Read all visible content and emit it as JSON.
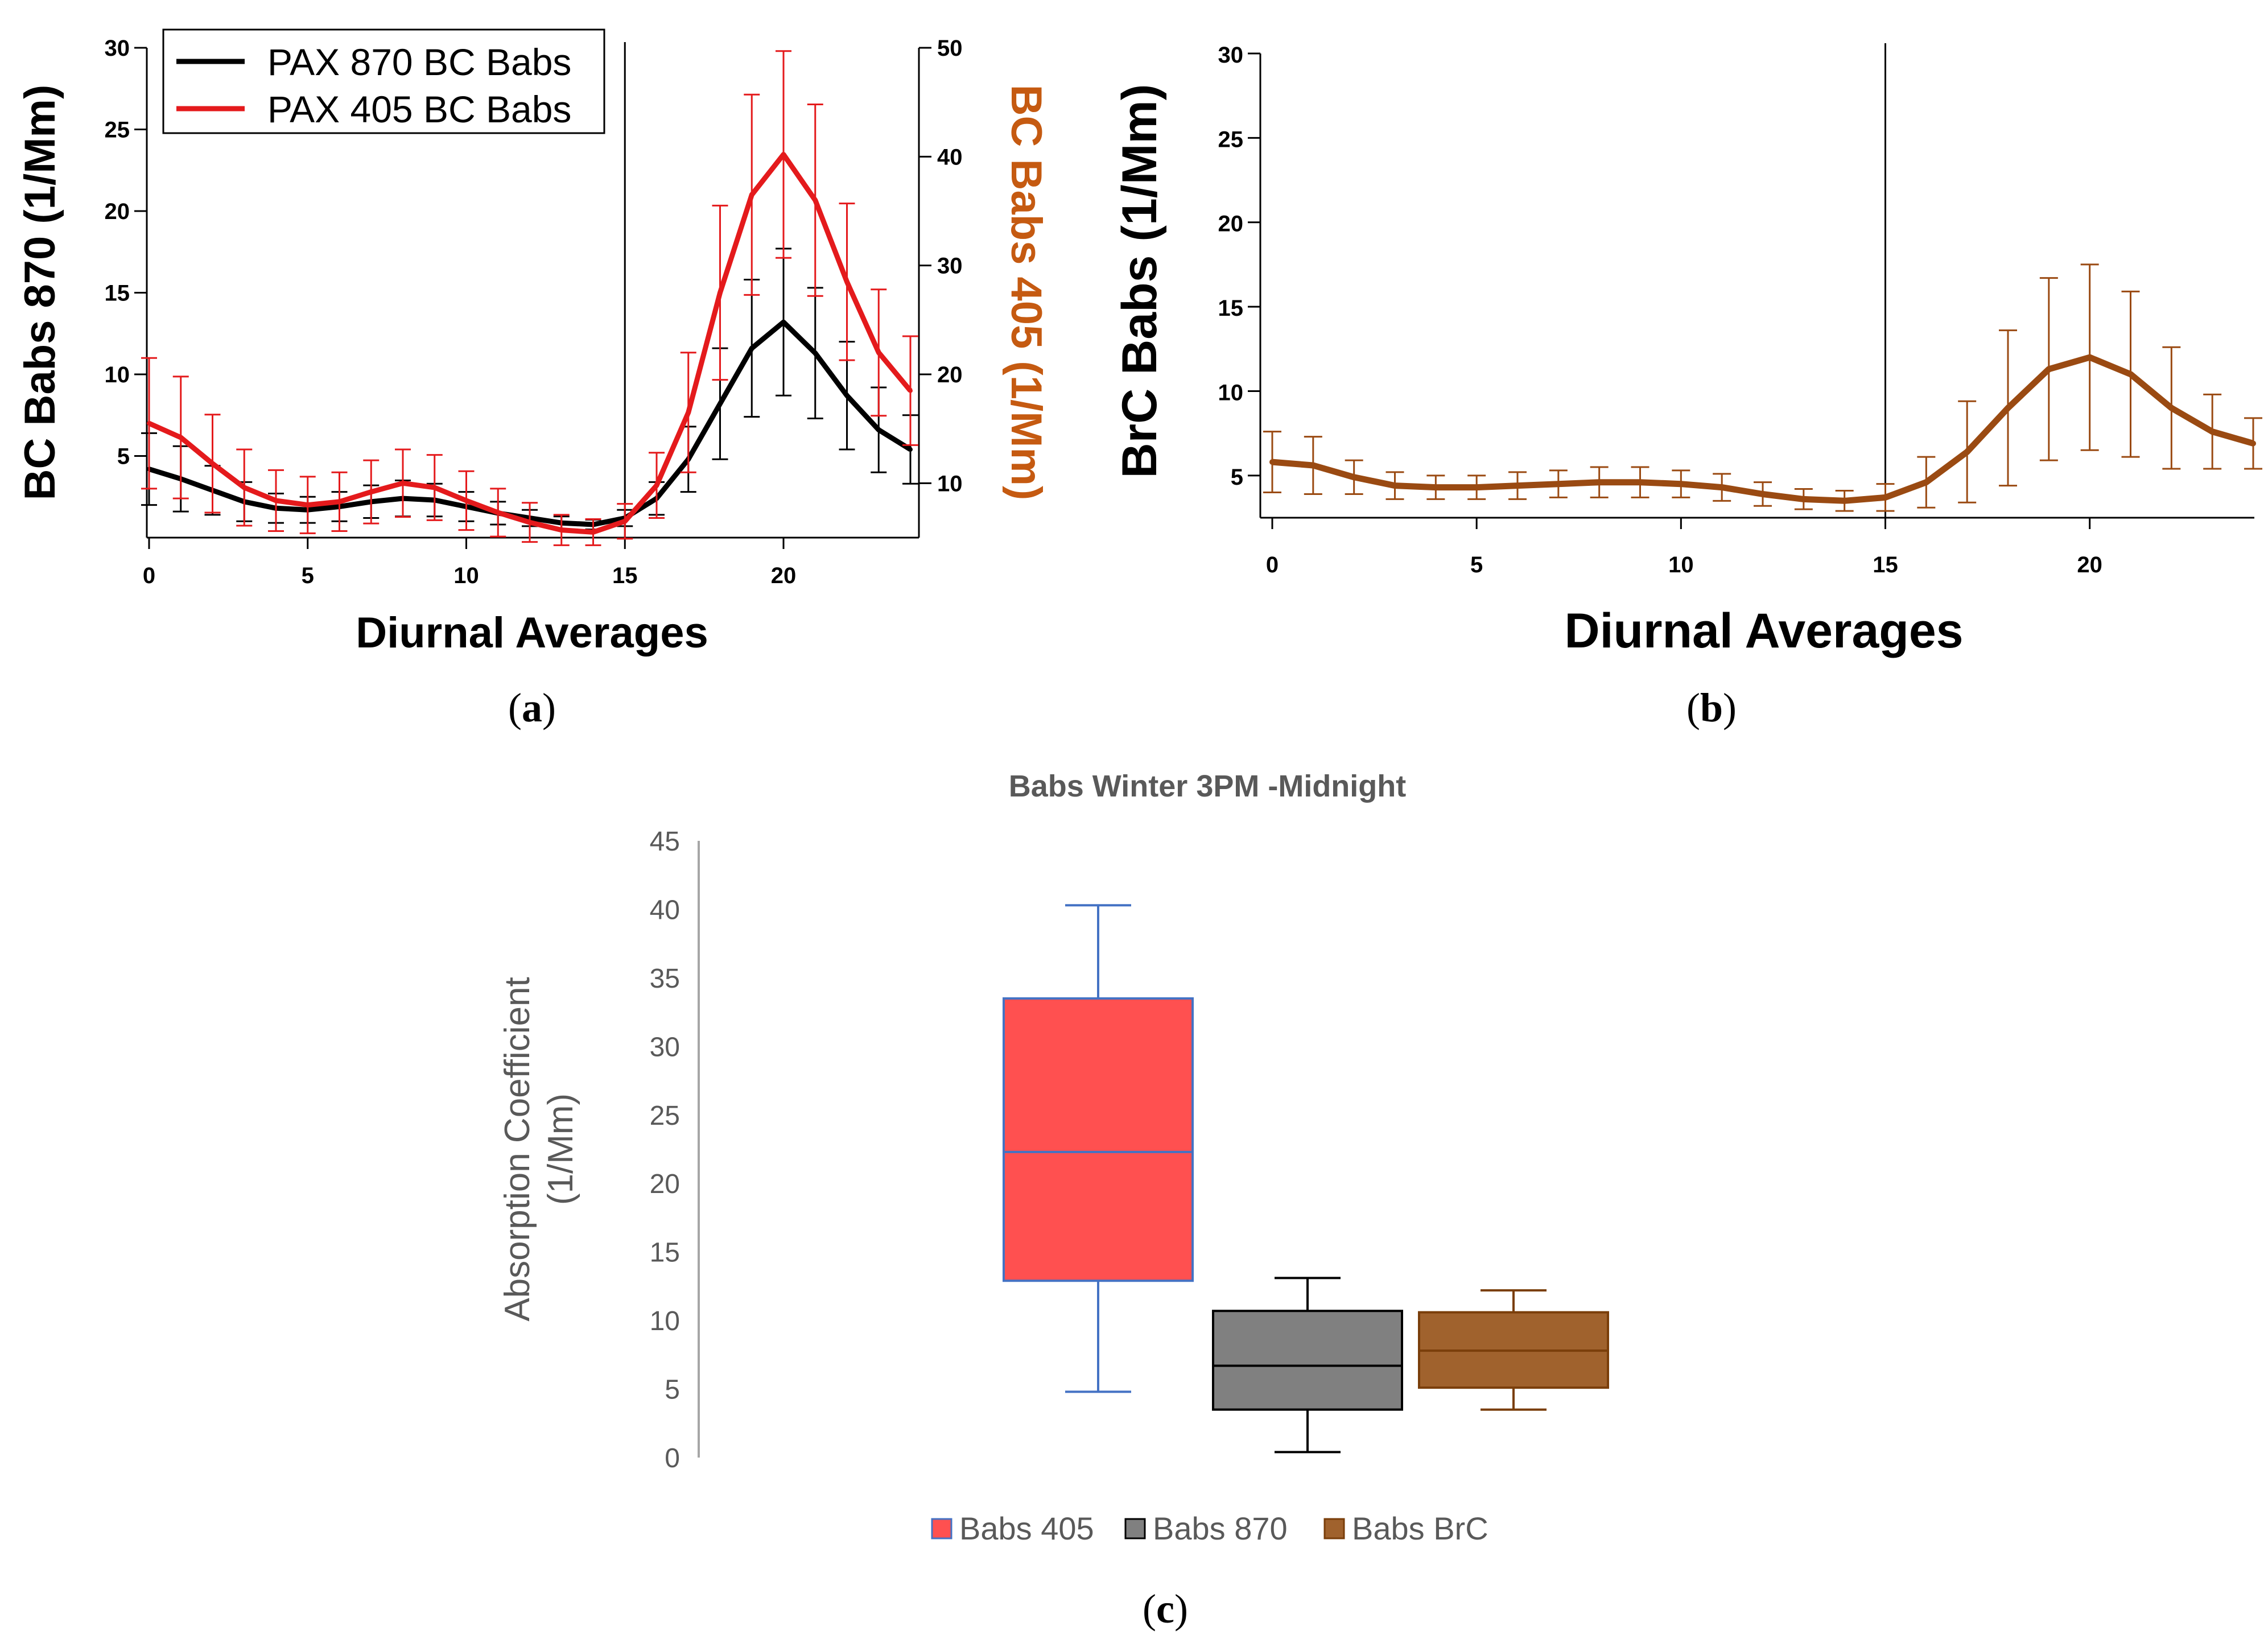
{
  "chart_data": [
    {
      "id": "a",
      "type": "line",
      "caption": "a",
      "xlabel": "Diurnal Averages",
      "ylabel": "BC Babs 870 (1/Mm)",
      "ylabel_right": "BC Babs 405 (1/Mm)",
      "xlim": [
        0,
        24
      ],
      "ylim_left": [
        0,
        30
      ],
      "ylim_right": [
        5,
        50
      ],
      "xticks": [
        0,
        5,
        10,
        15,
        20
      ],
      "yticks_left": [
        5,
        10,
        15,
        20,
        25,
        30
      ],
      "yticks_right": [
        10,
        20,
        30,
        40,
        50
      ],
      "vline_x": 15,
      "legend_position": "top-left",
      "series": [
        {
          "name": "PAX 870 BC Babs",
          "axis": "left",
          "color": "#000000",
          "x": [
            0,
            1,
            2,
            3,
            4,
            5,
            6,
            7,
            8,
            9,
            10,
            11,
            12,
            13,
            14,
            15,
            16,
            17,
            18,
            19,
            20,
            21,
            22,
            23,
            24
          ],
          "y": [
            4.2,
            3.6,
            2.9,
            2.2,
            1.8,
            1.7,
            1.9,
            2.2,
            2.4,
            2.3,
            1.9,
            1.5,
            1.2,
            0.9,
            0.8,
            1.2,
            2.4,
            4.8,
            8.2,
            11.6,
            13.2,
            11.3,
            8.7,
            6.6,
            5.4
          ],
          "err": [
            2.2,
            2.0,
            1.5,
            1.2,
            0.9,
            0.8,
            0.9,
            1.0,
            1.1,
            1.0,
            0.9,
            0.7,
            0.5,
            0.4,
            0.3,
            0.5,
            1.0,
            2.0,
            3.4,
            4.2,
            4.5,
            4.0,
            3.3,
            2.6,
            2.1
          ]
        },
        {
          "name": "PAX 405 BC Babs",
          "axis": "right",
          "color": "#E41A1C",
          "x": [
            0,
            1,
            2,
            3,
            4,
            5,
            6,
            7,
            8,
            9,
            10,
            11,
            12,
            13,
            14,
            15,
            16,
            17,
            18,
            19,
            20,
            21,
            22,
            23,
            24
          ],
          "y": [
            15.5,
            14.2,
            11.8,
            9.6,
            8.4,
            8.0,
            8.3,
            9.2,
            10.0,
            9.6,
            8.4,
            7.3,
            6.4,
            5.7,
            5.5,
            6.5,
            9.8,
            16.5,
            27.5,
            36.5,
            40.2,
            36.0,
            28.5,
            22.0,
            18.5
          ],
          "err": [
            6.0,
            5.6,
            4.5,
            3.5,
            2.8,
            2.6,
            2.7,
            2.9,
            3.1,
            3.0,
            2.7,
            2.2,
            1.8,
            1.4,
            1.2,
            1.6,
            3.0,
            5.5,
            8.0,
            9.2,
            9.5,
            8.8,
            7.2,
            5.8,
            5.0
          ]
        }
      ]
    },
    {
      "id": "b",
      "type": "line",
      "caption": "b",
      "xlabel": "Diurnal Averages",
      "ylabel": "BrC Babs (1/Mm)",
      "xlim": [
        0,
        24
      ],
      "ylim": [
        2.5,
        30
      ],
      "xticks": [
        0,
        5,
        10,
        15,
        20
      ],
      "yticks": [
        5,
        10,
        15,
        20,
        25,
        30
      ],
      "vline_x": 15,
      "series": [
        {
          "name": "BrC Babs",
          "color": "#9A4A12",
          "x": [
            0,
            1,
            2,
            3,
            4,
            5,
            6,
            7,
            8,
            9,
            10,
            11,
            12,
            13,
            14,
            15,
            16,
            17,
            18,
            19,
            20,
            21,
            22,
            23,
            24
          ],
          "y": [
            5.8,
            5.6,
            4.9,
            4.4,
            4.3,
            4.3,
            4.4,
            4.5,
            4.6,
            4.6,
            4.5,
            4.3,
            3.9,
            3.6,
            3.5,
            3.7,
            4.6,
            6.4,
            9.0,
            11.3,
            12.0,
            11.0,
            9.0,
            7.6,
            6.9
          ],
          "err": [
            1.8,
            1.7,
            1.0,
            0.8,
            0.7,
            0.7,
            0.8,
            0.8,
            0.9,
            0.9,
            0.8,
            0.8,
            0.7,
            0.6,
            0.6,
            0.8,
            1.5,
            3.0,
            4.6,
            5.4,
            5.5,
            4.9,
            3.6,
            2.2,
            1.5
          ]
        }
      ]
    },
    {
      "id": "c",
      "type": "box",
      "caption": "c",
      "title": "Babs Winter 3PM -Midnight",
      "ylabel": "Absorption Coefficient (1/Mm)",
      "ylabel_lines": [
        "Absorption Coefficient",
        "(1/Mm)"
      ],
      "ylim": [
        0,
        45
      ],
      "yticks": [
        0,
        5,
        10,
        15,
        20,
        25,
        30,
        35,
        40,
        45
      ],
      "legend_position": "bottom",
      "boxes": [
        {
          "name": "Babs 405",
          "min": 4.8,
          "q1": 12.9,
          "median": 22.3,
          "q3": 33.5,
          "max": 40.3,
          "fill": "#FF5050",
          "stroke": "#4472C4"
        },
        {
          "name": "Babs 870",
          "min": 0.4,
          "q1": 3.5,
          "median": 6.7,
          "q3": 10.7,
          "max": 13.1,
          "fill": "#808080",
          "stroke": "#000000"
        },
        {
          "name": "Babs BrC",
          "min": 3.5,
          "q1": 5.1,
          "median": 7.8,
          "q3": 10.6,
          "max": 12.2,
          "fill": "#A0622D",
          "stroke": "#7A3E0A"
        }
      ]
    }
  ]
}
